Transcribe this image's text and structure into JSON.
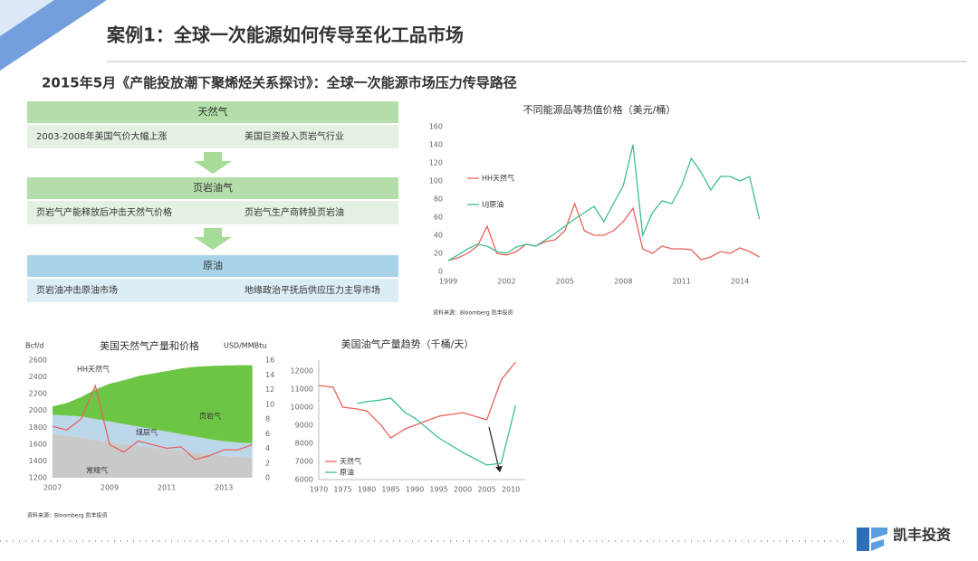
{
  "header": {
    "title": "案例1：全球一次能源如何传导至化工品市场",
    "subtitle": "2015年5月《产能投放潮下聚烯烃关系探讨》：全球一次能源市场压力传导路径"
  },
  "flow": {
    "sections": [
      {
        "title": "天然气",
        "items": [
          "2003-2008年美国气价大幅上涨",
          "美国巨资投入页岩气行业"
        ]
      },
      {
        "title": "页岩油气",
        "items": [
          "页岩气产能释放后冲击天然气价格",
          "页岩气生产商转投页岩油"
        ]
      },
      {
        "title": "原油",
        "items": [
          "页岩油冲击原油市场",
          "地缘政治平抚后供应压力主导市场"
        ]
      }
    ]
  },
  "chart_data": [
    {
      "type": "line",
      "title": "不同能源品等热值价格（美元/桶）",
      "x": [
        1999,
        1999.5,
        2000,
        2000.5,
        2001,
        2001.5,
        2002,
        2002.5,
        2003,
        2003.5,
        2004,
        2004.5,
        2005,
        2005.5,
        2006,
        2006.5,
        2007,
        2007.5,
        2008,
        2008.5,
        2009,
        2009.5,
        2010,
        2010.5,
        2011,
        2011.5,
        2012,
        2012.5,
        2013,
        2013.5,
        2014,
        2014.5,
        2015
      ],
      "xlim": [
        1999,
        2015.3
      ],
      "xticks": [
        1999,
        2002,
        2005,
        2008,
        2011,
        2014
      ],
      "ylim": [
        0,
        160
      ],
      "yticks": [
        0,
        20,
        40,
        60,
        80,
        100,
        120,
        140,
        160
      ],
      "series": [
        {
          "name": "HH天然气",
          "color": "#e8625e",
          "values": [
            12,
            15,
            20,
            28,
            50,
            20,
            18,
            22,
            30,
            28,
            33,
            35,
            45,
            75,
            45,
            40,
            40,
            45,
            55,
            70,
            25,
            20,
            28,
            25,
            25,
            24,
            13,
            16,
            22,
            20,
            26,
            22,
            16
          ]
        },
        {
          "name": "UJ原油",
          "color": "#3dbf8f",
          "values": [
            12,
            18,
            25,
            30,
            28,
            22,
            20,
            27,
            30,
            28,
            35,
            42,
            50,
            58,
            65,
            72,
            55,
            75,
            95,
            140,
            40,
            65,
            78,
            75,
            95,
            125,
            110,
            90,
            105,
            105,
            100,
            105,
            58
          ]
        }
      ]
    },
    {
      "type": "area",
      "title": "美国天然气产量和价格",
      "y_label": "Bcf/d",
      "y2_label": "USD/MMBtu",
      "stacked": true,
      "x": [
        2007,
        2007.5,
        2008,
        2008.5,
        2009,
        2009.5,
        2010,
        2010.5,
        2011,
        2011.5,
        2012,
        2012.5,
        2013,
        2013.5,
        2014
      ],
      "xlim": [
        2007,
        2014.2
      ],
      "xticks": [
        2007,
        2009,
        2011,
        2013
      ],
      "ylim": [
        1200,
        2600
      ],
      "yticks": [
        1200,
        1400,
        1600,
        1800,
        2000,
        2200,
        2400,
        2600
      ],
      "y2lim": [
        0,
        16
      ],
      "y2ticks": [
        0,
        2,
        4,
        6,
        8,
        10,
        12,
        14,
        16
      ],
      "series": [
        {
          "name": "常规气",
          "color": "#c9c9c9",
          "values": [
            1720,
            1700,
            1680,
            1650,
            1620,
            1600,
            1580,
            1560,
            1540,
            1520,
            1500,
            1480,
            1460,
            1450,
            1440
          ]
        },
        {
          "name": "煤层气",
          "color": "#bcd6ea",
          "values": [
            230,
            240,
            250,
            250,
            250,
            240,
            230,
            220,
            210,
            200,
            190,
            180,
            175,
            170,
            170
          ]
        },
        {
          "name": "页岩气",
          "color": "#6cc644",
          "values": [
            100,
            150,
            230,
            350,
            450,
            520,
            600,
            660,
            720,
            780,
            830,
            870,
            900,
            920,
            930
          ]
        },
        {
          "name": "HH天然气",
          "color": "#e8625e",
          "axis": "y2",
          "values": [
            7,
            6.5,
            8,
            12.5,
            4.5,
            3.5,
            5,
            4.5,
            4,
            4.2,
            2.5,
            3,
            3.8,
            3.8,
            4.5
          ]
        }
      ]
    },
    {
      "type": "line",
      "title": "美国油气产量趋势（千桶/天）",
      "x": [
        1970,
        1973,
        1975,
        1978,
        1980,
        1983,
        1985,
        1988,
        1990,
        1995,
        2000,
        2005,
        2008,
        2011
      ],
      "xlim": [
        1970,
        2013
      ],
      "xticks": [
        1970,
        1975,
        1980,
        1985,
        1990,
        1995,
        2000,
        2005,
        2010
      ],
      "ylim": [
        6000,
        12600
      ],
      "yticks": [
        6000,
        7000,
        8000,
        9000,
        10000,
        11000,
        12000
      ],
      "series": [
        {
          "name": "天然气",
          "color": "#e8625e",
          "values": [
            11200,
            11100,
            10000,
            9900,
            9800,
            9000,
            8300,
            8800,
            9000,
            9500,
            9700,
            9300,
            11500,
            12500
          ]
        },
        {
          "name": "原油",
          "color": "#3dbf8f",
          "values": [
            null,
            null,
            null,
            10200,
            10300,
            10400,
            10500,
            9700,
            9400,
            8300,
            7500,
            6800,
            6900,
            10100
          ]
        }
      ]
    }
  ],
  "sources": [
    "资料来源：Bloomberg 凯丰投资",
    "资料来源：Bloomberg 凯丰投资"
  ],
  "logo": {
    "name": "凯丰投资"
  }
}
